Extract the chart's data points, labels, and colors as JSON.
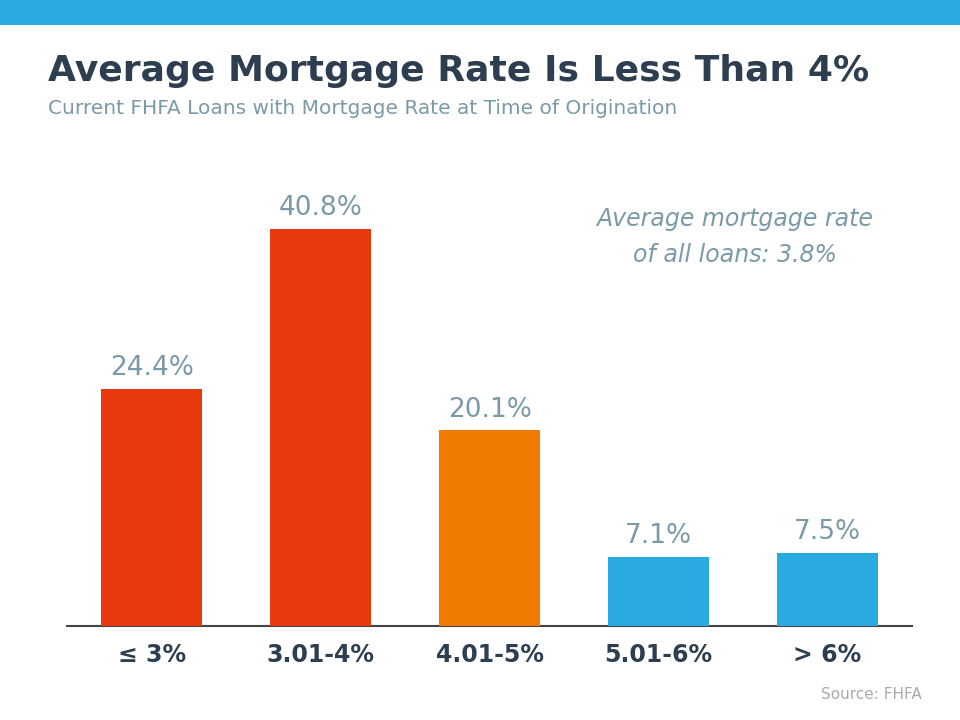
{
  "title": "Average Mortgage Rate Is Less Than 4%",
  "subtitle": "Current FHFA Loans with Mortgage Rate at Time of Origination",
  "categories": [
    "≤ 3%",
    "3.01-4%",
    "4.01-5%",
    "5.01-6%",
    "> 6%"
  ],
  "values": [
    24.4,
    40.8,
    20.1,
    7.1,
    7.5
  ],
  "bar_colors": [
    "#E8390C",
    "#E8390C",
    "#F07A00",
    "#29ABE2",
    "#29ABE2"
  ],
  "label_color": "#7A9AAA",
  "title_color": "#2C3E50",
  "subtitle_color": "#7A9AAA",
  "annotation_text": "Average mortgage rate\nof all loans: 3.8%",
  "annotation_color": "#7A9AAA",
  "source_text": "Source: FHFA",
  "source_color": "#AAAAAA",
  "top_bar_color": "#29ABE2",
  "background_color": "#FFFFFF",
  "ylim": [
    0,
    48
  ],
  "bar_width": 0.6
}
